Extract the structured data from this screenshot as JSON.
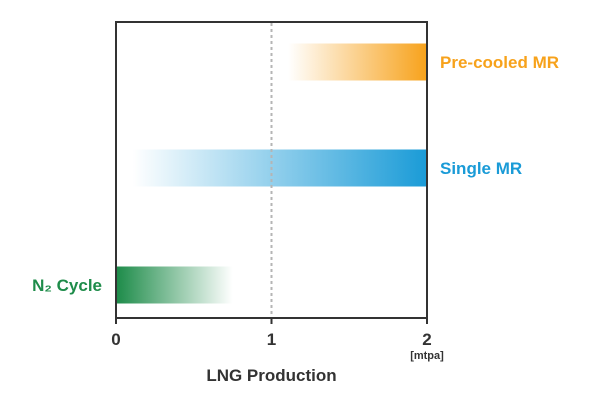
{
  "chart_data": {
    "type": "bar",
    "orientation": "horizontal",
    "title": "",
    "xlabel": "LNG Production",
    "xunit": "[mtpa]",
    "ylabel": "",
    "xlim": [
      0,
      2
    ],
    "xticks": [
      "0",
      "1",
      "2"
    ],
    "reference_line": {
      "x": 1,
      "style": "dotted"
    },
    "series": [
      {
        "name": "Pre-cooled MR",
        "start": 1.1,
        "end": 2.0,
        "color": "#f7a21b"
      },
      {
        "name": "Single MR",
        "start": 0.1,
        "end": 2.0,
        "color": "#1a9bd7"
      },
      {
        "name": "N₂ Cycle",
        "start": 0.0,
        "end": 0.75,
        "color": "#1e8c4a"
      }
    ],
    "grid": false,
    "legend": "inline"
  }
}
